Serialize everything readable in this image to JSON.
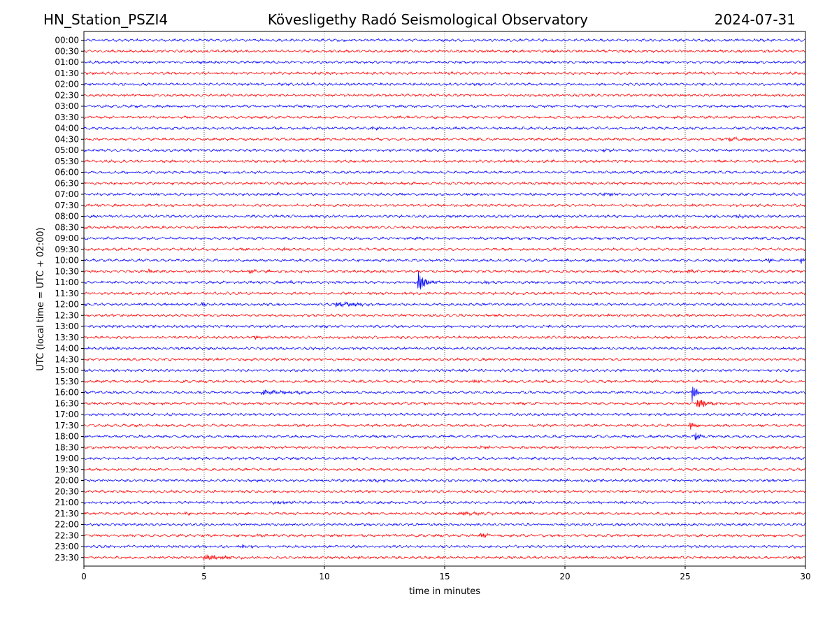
{
  "header": {
    "station": "HN_Station_PSZI4",
    "title": "Kövesligethy Radó Seismological Observatory",
    "date": "2024-07-31"
  },
  "chart_data": {
    "type": "line",
    "title": "Kövesligethy Radó Seismological Observatory",
    "xlabel": "time in minutes",
    "ylabel": "UTC (local time = UTC + 02:00)",
    "xlim": [
      0,
      30
    ],
    "x_ticks": [
      0,
      5,
      10,
      15,
      20,
      25,
      30
    ],
    "grid": "vertical dotted at 5-minute ticks",
    "trace_colors": [
      "#0000ff",
      "#ff0000"
    ],
    "rows": [
      "00:00",
      "00:30",
      "01:00",
      "01:30",
      "02:00",
      "02:30",
      "03:00",
      "03:30",
      "04:00",
      "04:30",
      "05:00",
      "05:30",
      "06:00",
      "06:30",
      "07:00",
      "07:30",
      "08:00",
      "08:30",
      "09:00",
      "09:30",
      "10:00",
      "10:30",
      "11:00",
      "11:30",
      "12:00",
      "12:30",
      "13:00",
      "13:30",
      "14:00",
      "14:30",
      "15:00",
      "15:30",
      "16:00",
      "16:30",
      "17:00",
      "17:30",
      "18:00",
      "18:30",
      "19:00",
      "19:30",
      "20:00",
      "20:30",
      "21:00",
      "21:30",
      "22:00",
      "22:30",
      "23:00",
      "23:30"
    ],
    "events": [
      {
        "row": "00:00",
        "minute": 11.4,
        "amp": 0.15,
        "dur": 0.4
      },
      {
        "row": "02:00",
        "minute": 9.3,
        "amp": 0.2,
        "dur": 0.2
      },
      {
        "row": "04:00",
        "minute": 11.9,
        "amp": 0.3,
        "dur": 1.0
      },
      {
        "row": "04:30",
        "minute": 26.8,
        "amp": 0.45,
        "dur": 0.7
      },
      {
        "row": "04:30",
        "minute": 19.0,
        "amp": 0.2,
        "dur": 0.4
      },
      {
        "row": "05:00",
        "minute": 21.6,
        "amp": 0.3,
        "dur": 0.4
      },
      {
        "row": "07:00",
        "minute": 21.6,
        "amp": 0.4,
        "dur": 0.7
      },
      {
        "row": "07:00",
        "minute": 7.9,
        "amp": 0.35,
        "dur": 0.4
      },
      {
        "row": "08:00",
        "minute": 27.1,
        "amp": 0.35,
        "dur": 0.6
      },
      {
        "row": "08:30",
        "minute": 23.8,
        "amp": 0.2,
        "dur": 0.8
      },
      {
        "row": "09:30",
        "minute": 8.2,
        "amp": 0.35,
        "dur": 0.8
      },
      {
        "row": "10:00",
        "minute": 28.5,
        "amp": 0.6,
        "dur": 0.3
      },
      {
        "row": "10:00",
        "minute": 29.8,
        "amp": 0.6,
        "dur": 0.4
      },
      {
        "row": "10:30",
        "minute": 2.7,
        "amp": 0.7,
        "dur": 0.3
      },
      {
        "row": "10:30",
        "minute": 6.9,
        "amp": 0.5,
        "dur": 0.3
      },
      {
        "row": "10:30",
        "minute": 25.1,
        "amp": 0.6,
        "dur": 0.4
      },
      {
        "row": "11:00",
        "minute": 13.9,
        "amp": 2.8,
        "dur": 0.4
      },
      {
        "row": "11:00",
        "minute": 8.6,
        "amp": 0.4,
        "dur": 0.3
      },
      {
        "row": "11:00",
        "minute": 16.7,
        "amp": 0.4,
        "dur": 0.2
      },
      {
        "row": "12:00",
        "minute": 10.5,
        "amp": 0.6,
        "dur": 1.3
      },
      {
        "row": "12:00",
        "minute": 4.9,
        "amp": 0.35,
        "dur": 0.3
      },
      {
        "row": "13:30",
        "minute": 7.1,
        "amp": 0.45,
        "dur": 0.5
      },
      {
        "row": "15:30",
        "minute": 16.2,
        "amp": 0.5,
        "dur": 0.3
      },
      {
        "row": "15:30",
        "minute": 28.2,
        "amp": 0.3,
        "dur": 0.6
      },
      {
        "row": "16:00",
        "minute": 7.4,
        "amp": 0.55,
        "dur": 1.5
      },
      {
        "row": "16:00",
        "minute": 25.3,
        "amp": 2.2,
        "dur": 0.25
      },
      {
        "row": "16:30",
        "minute": 25.5,
        "amp": 1.2,
        "dur": 0.6
      },
      {
        "row": "17:30",
        "minute": 25.2,
        "amp": 1.0,
        "dur": 0.3
      },
      {
        "row": "18:00",
        "minute": 25.4,
        "amp": 1.2,
        "dur": 0.3
      },
      {
        "row": "18:30",
        "minute": 16.5,
        "amp": 0.3,
        "dur": 0.7
      },
      {
        "row": "20:00",
        "minute": 12.1,
        "amp": 0.3,
        "dur": 0.5
      },
      {
        "row": "21:00",
        "minute": 7.9,
        "amp": 0.3,
        "dur": 1.0
      },
      {
        "row": "21:30",
        "minute": 15.6,
        "amp": 0.4,
        "dur": 1.3
      },
      {
        "row": "21:30",
        "minute": 4.2,
        "amp": 0.3,
        "dur": 0.5
      },
      {
        "row": "22:30",
        "minute": 16.5,
        "amp": 0.55,
        "dur": 0.5
      },
      {
        "row": "22:30",
        "minute": 7.0,
        "amp": 0.35,
        "dur": 0.6
      },
      {
        "row": "23:00",
        "minute": 6.6,
        "amp": 0.35,
        "dur": 0.3
      },
      {
        "row": "23:30",
        "minute": 5.0,
        "amp": 0.7,
        "dur": 1.3
      }
    ]
  }
}
